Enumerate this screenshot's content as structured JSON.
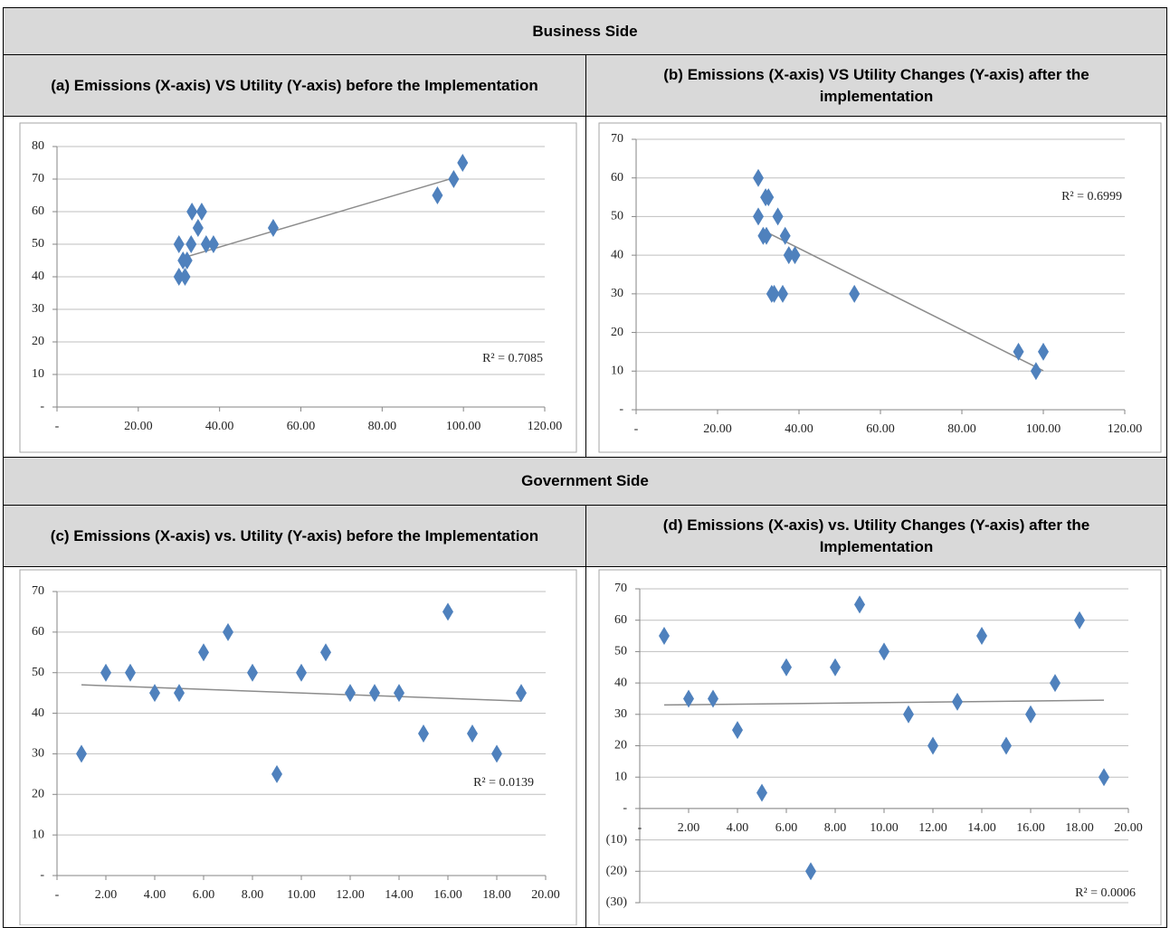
{
  "table": {
    "sections": [
      {
        "title": "Business Side",
        "captions": [
          "(a) Emissions (X-axis) VS Utility (Y-axis) before the Implementation",
          "(b) Emissions (X-axis) VS Utility Changes (Y-axis) after the implementation"
        ]
      },
      {
        "title": "Government Side",
        "captions": [
          "(c) Emissions (X-axis) vs. Utility (Y-axis) before the Implementation",
          "(d) Emissions (X-axis) vs. Utility Changes (Y-axis) after the Implementation"
        ]
      }
    ]
  },
  "chart_data": [
    {
      "type": "scatter",
      "marker": "diamond",
      "color": "#4f81bd",
      "grid": true,
      "x": [
        30,
        31.5,
        30,
        31,
        32,
        33,
        33.2,
        35.6,
        34.7,
        36.7,
        38.5,
        53.2,
        93.6,
        97.6,
        99.8
      ],
      "values": [
        40,
        40,
        50,
        45,
        45,
        50,
        60,
        60,
        55,
        50,
        50,
        55,
        65,
        70,
        75
      ],
      "trendline": {
        "color": "#8c8c8c",
        "x": [
          31.5,
          98
        ],
        "values": [
          46,
          70.5
        ]
      },
      "annotation": "R² = 0.7085",
      "xlim": [
        0,
        120
      ],
      "ylim": [
        0,
        80
      ],
      "xticks": [
        {
          "value": 0,
          "label": "-"
        },
        {
          "value": 20,
          "label": "20.00"
        },
        {
          "value": 40,
          "label": "40.00"
        },
        {
          "value": 60,
          "label": "60.00"
        },
        {
          "value": 80,
          "label": "80.00"
        },
        {
          "value": 100,
          "label": "100.00"
        },
        {
          "value": 120,
          "label": "120.00"
        }
      ],
      "yticks": [
        {
          "value": 0,
          "label": "-"
        },
        10,
        20,
        30,
        40,
        50,
        60,
        70,
        80
      ]
    },
    {
      "type": "scatter",
      "marker": "diamond",
      "color": "#4f81bd",
      "grid": true,
      "x": [
        30,
        30,
        31.2,
        32,
        31.8,
        32.5,
        34.8,
        36.6,
        33.3,
        33.9,
        36,
        37.5,
        39,
        53.6,
        93.9,
        100,
        98.2
      ],
      "values": [
        60,
        50,
        45,
        45,
        55,
        55,
        50,
        45,
        30,
        30,
        30,
        40,
        40,
        30,
        15,
        15,
        10
      ],
      "trendline": {
        "color": "#8c8c8c",
        "x": [
          31.2,
          100
        ],
        "values": [
          46.4,
          10.1
        ]
      },
      "annotation": "R² = 0.6999",
      "xlim": [
        0,
        120
      ],
      "ylim": [
        0,
        70
      ],
      "xticks": [
        {
          "value": 0,
          "label": "-"
        },
        {
          "value": 20,
          "label": "20.00"
        },
        {
          "value": 40,
          "label": "40.00"
        },
        {
          "value": 60,
          "label": "60.00"
        },
        {
          "value": 80,
          "label": "80.00"
        },
        {
          "value": 100,
          "label": "100.00"
        },
        {
          "value": 120,
          "label": "120.00"
        }
      ],
      "yticks": [
        {
          "value": 0,
          "label": "-"
        },
        10,
        20,
        30,
        40,
        50,
        60,
        70
      ]
    },
    {
      "type": "scatter",
      "marker": "diamond",
      "color": "#4f81bd",
      "grid": true,
      "x": [
        1,
        2,
        3,
        4,
        5,
        6,
        7,
        8,
        9,
        10,
        11,
        12,
        13,
        14,
        15,
        16,
        17,
        18,
        19
      ],
      "values": [
        30,
        50,
        50,
        45,
        45,
        55,
        60,
        50,
        25,
        50,
        55,
        45,
        45,
        45,
        35,
        65,
        35,
        30,
        45
      ],
      "trendline": {
        "color": "#8c8c8c",
        "x": [
          1,
          19
        ],
        "values": [
          47,
          43
        ]
      },
      "annotation": "R² = 0.0139",
      "xlim": [
        0,
        20
      ],
      "ylim": [
        0,
        70
      ],
      "xticks": [
        {
          "value": 0,
          "label": "-"
        },
        {
          "value": 2,
          "label": "2.00"
        },
        {
          "value": 4,
          "label": "4.00"
        },
        {
          "value": 6,
          "label": "6.00"
        },
        {
          "value": 8,
          "label": "8.00"
        },
        {
          "value": 10,
          "label": "10.00"
        },
        {
          "value": 12,
          "label": "12.00"
        },
        {
          "value": 14,
          "label": "14.00"
        },
        {
          "value": 16,
          "label": "16.00"
        },
        {
          "value": 18,
          "label": "18.00"
        },
        {
          "value": 20,
          "label": "20.00"
        }
      ],
      "yticks": [
        {
          "value": 0,
          "label": "-"
        },
        10,
        20,
        30,
        40,
        50,
        60,
        70
      ]
    },
    {
      "type": "scatter",
      "marker": "diamond",
      "color": "#4f81bd",
      "grid": true,
      "x": [
        1,
        2,
        3,
        4,
        5,
        6,
        7,
        8,
        9,
        10,
        11,
        12,
        13,
        14,
        15,
        16,
        17,
        18,
        19
      ],
      "values": [
        55,
        35,
        35,
        25,
        5,
        45,
        -20,
        45,
        65,
        50,
        30,
        20,
        34,
        55,
        20,
        30,
        40,
        60,
        10
      ],
      "trendline": {
        "color": "#8c8c8c",
        "x": [
          1,
          19
        ],
        "values": [
          33,
          34.5
        ]
      },
      "annotation": "R² = 0.0006",
      "xlim": [
        0,
        20
      ],
      "ylim": [
        -30,
        70
      ],
      "xticks": [
        {
          "value": 0,
          "label": "-"
        },
        {
          "value": 2,
          "label": "2.00"
        },
        {
          "value": 4,
          "label": "4.00"
        },
        {
          "value": 6,
          "label": "6.00"
        },
        {
          "value": 8,
          "label": "8.00"
        },
        {
          "value": 10,
          "label": "10.00"
        },
        {
          "value": 12,
          "label": "12.00"
        },
        {
          "value": 14,
          "label": "14.00"
        },
        {
          "value": 16,
          "label": "16.00"
        },
        {
          "value": 18,
          "label": "18.00"
        },
        {
          "value": 20,
          "label": "20.00"
        }
      ],
      "yticks": [
        {
          "value": -30,
          "label": "(30)"
        },
        {
          "value": -20,
          "label": "(20)"
        },
        {
          "value": -10,
          "label": "(10)"
        },
        {
          "value": 0,
          "label": "-"
        },
        10,
        20,
        30,
        40,
        50,
        60,
        70
      ]
    }
  ]
}
